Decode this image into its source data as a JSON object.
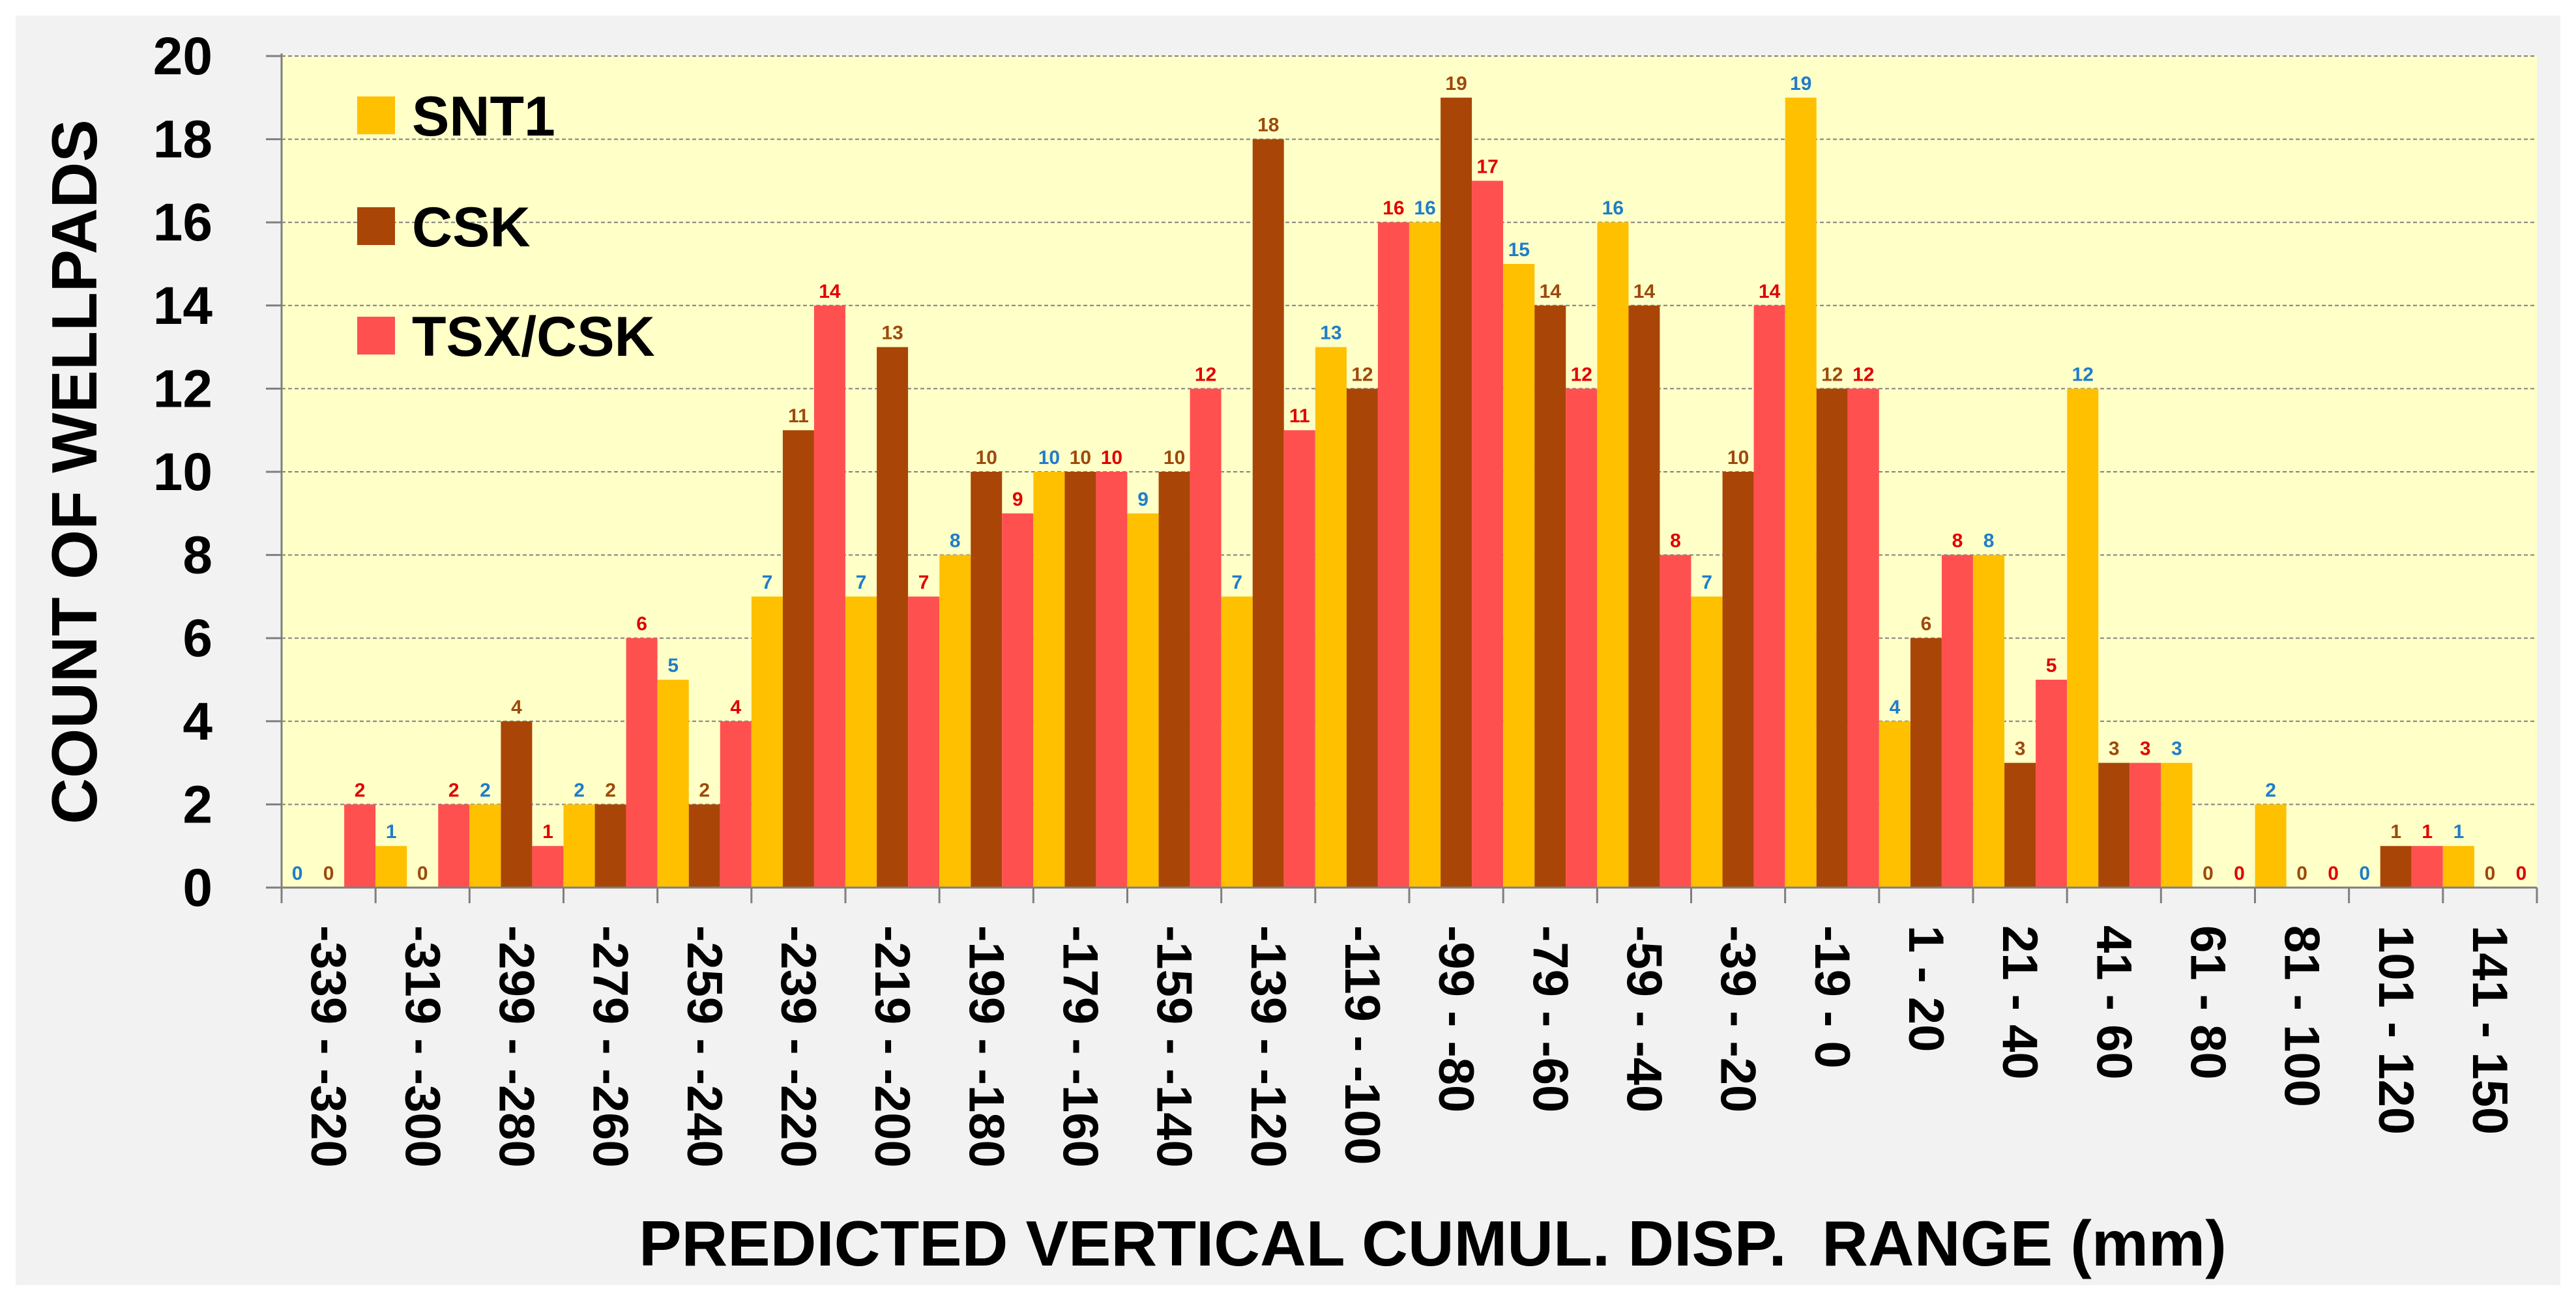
{
  "chart_data": {
    "type": "bar",
    "xlabel": "PREDICTED VERTICAL CUMUL. DISP.  RANGE (mm)",
    "ylabel": "COUNT OF WELLPADS",
    "ylim": [
      0,
      20
    ],
    "yticks": [
      "0",
      "2",
      "4",
      "6",
      "8",
      "10",
      "12",
      "14",
      "16",
      "18",
      "20"
    ],
    "grid": true,
    "legend_position": "top-left",
    "categories": [
      "-339 - -320",
      "-319 - -300",
      "-299 - -280",
      "-279 - -260",
      "-259 - -240",
      "-239 - -220",
      "-219 - -200",
      "-199 - -180",
      "-179 - -160",
      "-159 - -140",
      "-139 - -120",
      "-119 - -100",
      "-99 - -80",
      "-79 - -60",
      "-59 - -40",
      "-39 - -20",
      "-19 - 0",
      "1 - 20",
      "21 - 40",
      "41 - 60",
      "61 - 80",
      "81 - 100",
      "101 - 120",
      "141 - 150"
    ],
    "series": [
      {
        "name": "SNT1",
        "color": "#FFC000",
        "label_color": "#1F7DC8",
        "values": [
          0,
          1,
          2,
          2,
          5,
          7,
          7,
          8,
          10,
          9,
          7,
          13,
          16,
          15,
          16,
          7,
          19,
          4,
          8,
          12,
          3,
          2,
          0,
          1
        ]
      },
      {
        "name": "CSK",
        "color": "#A94607",
        "label_color": "#9C4A0C",
        "values": [
          0,
          0,
          4,
          2,
          2,
          11,
          13,
          10,
          10,
          10,
          18,
          12,
          19,
          14,
          14,
          10,
          12,
          6,
          3,
          3,
          0,
          0,
          1,
          0
        ]
      },
      {
        "name": "TSX/CSK",
        "color": "#FF5050",
        "label_color": "#E00000",
        "values": [
          2,
          2,
          1,
          6,
          4,
          14,
          7,
          9,
          10,
          12,
          11,
          16,
          17,
          12,
          8,
          14,
          12,
          8,
          5,
          3,
          0,
          0,
          1,
          0
        ]
      }
    ],
    "colors": {
      "plot_background": "#FFFFC8",
      "page_background": "#F2F2F2",
      "gridline": "#808080"
    }
  }
}
